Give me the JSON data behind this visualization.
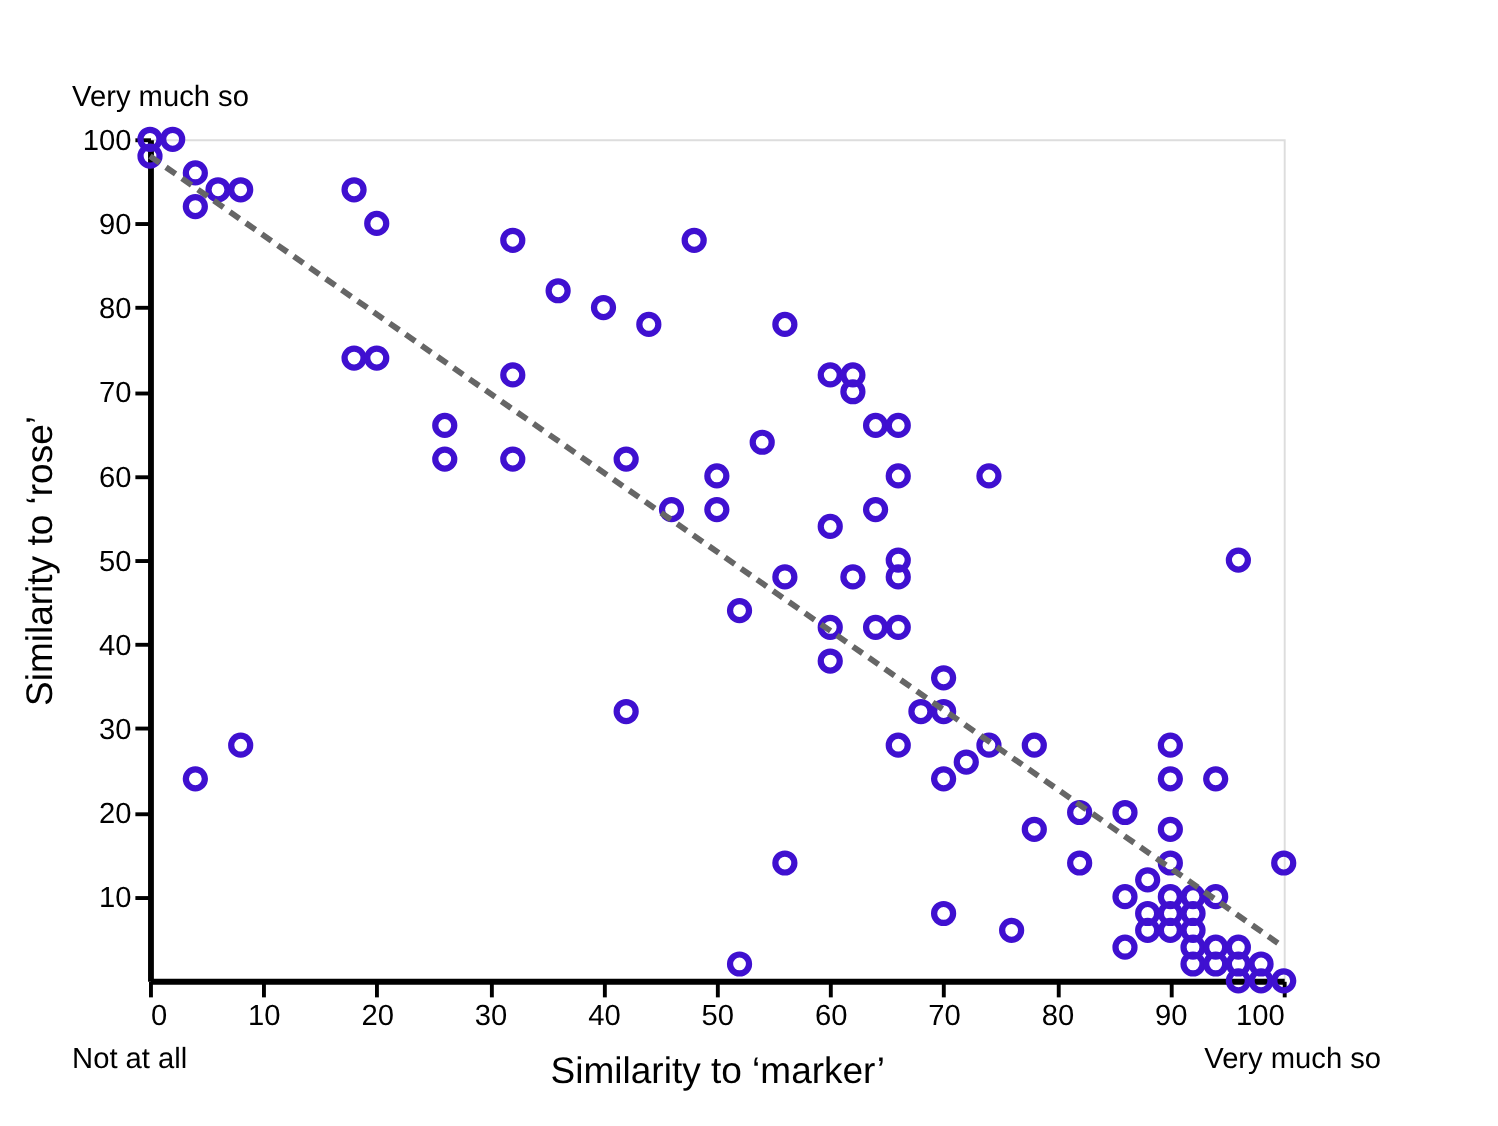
{
  "chart_data": {
    "type": "scatter",
    "xlabel": "Similarity to ‘marker’",
    "ylabel": "Similarity to ‘rose’",
    "annotations": [
      "Very much so",
      "Not at all",
      "Very much so"
    ],
    "xlim": [
      0,
      100
    ],
    "ylim": [
      0,
      100
    ],
    "xticks": [
      0,
      10,
      20,
      30,
      40,
      50,
      60,
      70,
      80,
      90,
      100
    ],
    "yticks": [
      10,
      20,
      30,
      40,
      50,
      60,
      70,
      80,
      90,
      100
    ],
    "grid": false,
    "marker": "circle",
    "series": [
      {
        "color": "#3f10d0",
        "x": [
          0,
          2,
          0,
          4,
          4,
          6,
          8,
          18,
          20,
          32,
          48,
          36,
          40,
          44,
          18,
          20,
          32,
          26,
          26,
          32,
          42,
          50,
          46,
          50,
          54,
          56,
          60,
          62,
          62,
          64,
          66,
          66,
          74,
          64,
          60,
          96,
          66,
          56,
          62,
          66,
          52,
          60,
          64,
          66,
          60,
          70,
          68,
          70,
          66,
          74,
          78,
          90,
          72,
          70,
          90,
          94,
          82,
          86,
          78,
          90,
          56,
          82,
          90,
          100,
          88,
          86,
          90,
          92,
          94,
          88,
          90,
          92,
          70,
          76,
          88,
          90,
          92,
          86,
          92,
          94,
          96,
          52,
          92,
          94,
          96,
          98,
          96,
          98,
          100,
          4,
          8,
          42
        ],
        "values": [
          100,
          100,
          98,
          96,
          92,
          94,
          94,
          94,
          90,
          88,
          88,
          82,
          80,
          78,
          74,
          74,
          72,
          66,
          62,
          62,
          62,
          60,
          56,
          56,
          64,
          78,
          72,
          72,
          70,
          66,
          66,
          60,
          60,
          56,
          54,
          50,
          50,
          48,
          48,
          48,
          44,
          42,
          42,
          42,
          38,
          36,
          32,
          32,
          28,
          28,
          28,
          28,
          26,
          24,
          24,
          24,
          20,
          20,
          18,
          18,
          14,
          14,
          14,
          14,
          12,
          10,
          10,
          10,
          10,
          8,
          8,
          8,
          8,
          6,
          6,
          6,
          6,
          4,
          4,
          4,
          4,
          2,
          2,
          2,
          2,
          2,
          0,
          0,
          0,
          24,
          28,
          32
        ]
      },
      {
        "type": "line",
        "color": "#666666",
        "line_style": "dashed",
        "marker": "none",
        "x": [
          0,
          100
        ],
        "values": [
          98,
          4
        ]
      }
    ]
  }
}
